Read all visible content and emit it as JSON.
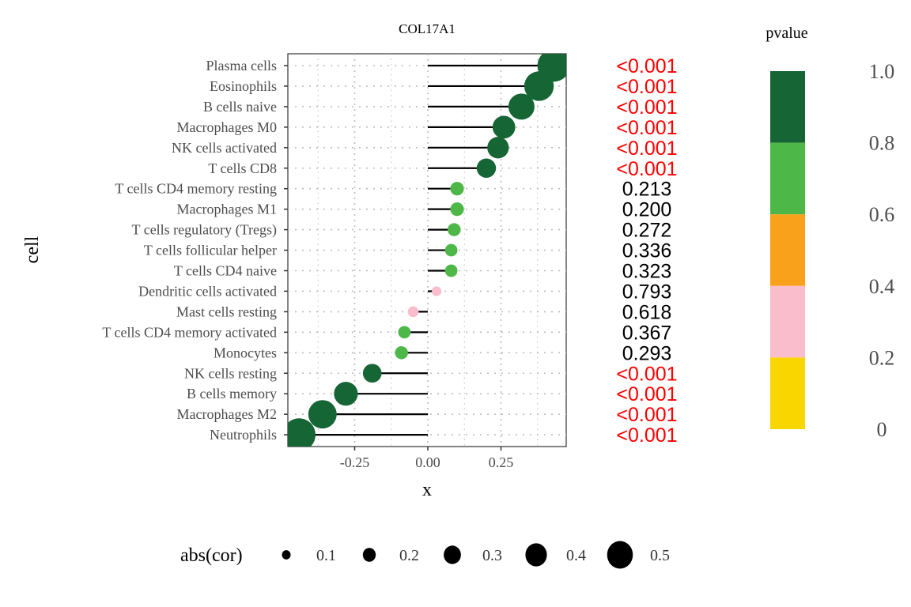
{
  "chart_data": {
    "type": "scatter",
    "subtype": "lollipop",
    "title": "COL17A1",
    "xlabel": "x",
    "ylabel": "cell",
    "xlim": [
      -0.46,
      0.47
    ],
    "x_ticks": [
      -0.25,
      0.0,
      0.25
    ],
    "x_tick_labels": [
      "-0.25",
      "0.00",
      "0.25"
    ],
    "grid": "dotted",
    "categories": [
      "Plasma cells",
      "Eosinophils",
      "B cells naive",
      "Macrophages M0",
      "NK cells activated",
      "T cells CD8",
      "T cells CD4 memory resting",
      "Macrophages M1",
      "T cells regulatory (Tregs)",
      "T cells follicular helper",
      "T cells CD4 naive",
      "Dendritic cells activated",
      "Mast cells resting",
      "T cells CD4 memory activated",
      "Monocytes",
      "NK cells resting",
      "B cells memory",
      "Macrophages M2",
      "Neutrophils"
    ],
    "cor": [
      0.43,
      0.38,
      0.32,
      0.26,
      0.24,
      0.2,
      0.1,
      0.1,
      0.09,
      0.08,
      0.08,
      0.03,
      -0.05,
      -0.08,
      -0.09,
      -0.19,
      -0.28,
      -0.36,
      -0.44
    ],
    "pvalue_text": [
      "<0.001",
      "<0.001",
      "<0.001",
      "<0.001",
      "<0.001",
      "<0.001",
      "0.213",
      "0.200",
      "0.272",
      "0.336",
      "0.323",
      "0.793",
      "0.618",
      "0.367",
      "0.293",
      "<0.001",
      "<0.001",
      "<0.001",
      "<0.001"
    ],
    "point_color_class": [
      "dark",
      "dark",
      "dark",
      "dark",
      "dark",
      "dark",
      "green",
      "green",
      "green",
      "green",
      "green",
      "pink",
      "pink",
      "green",
      "green",
      "dark",
      "dark",
      "dark",
      "dark"
    ],
    "significant_color": "#ff0000",
    "nonsignificant_color": "#000000",
    "color_legend": {
      "title": "pvalue",
      "ticks": [
        "1.0",
        "0.8",
        "0.6",
        "0.4",
        "0.2",
        "0"
      ],
      "bands": [
        {
          "from": 0.8,
          "to": 1.0,
          "color": "#166534"
        },
        {
          "from": 0.6,
          "to": 0.8,
          "color": "#4db848"
        },
        {
          "from": 0.4,
          "to": 0.6,
          "color": "#f9a11b"
        },
        {
          "from": 0.2,
          "to": 0.4,
          "color": "#f9bdcc"
        },
        {
          "from": 0.0,
          "to": 0.2,
          "color": "#f9d600"
        }
      ]
    },
    "size_legend": {
      "title": "abs(cor)",
      "values": [
        0.1,
        0.2,
        0.3,
        0.4,
        0.5
      ],
      "labels": [
        "0.1",
        "0.2",
        "0.3",
        "0.4",
        "0.5"
      ]
    },
    "colors": {
      "dark": "#166534",
      "green": "#4db848",
      "pink": "#f9bdcc"
    }
  }
}
